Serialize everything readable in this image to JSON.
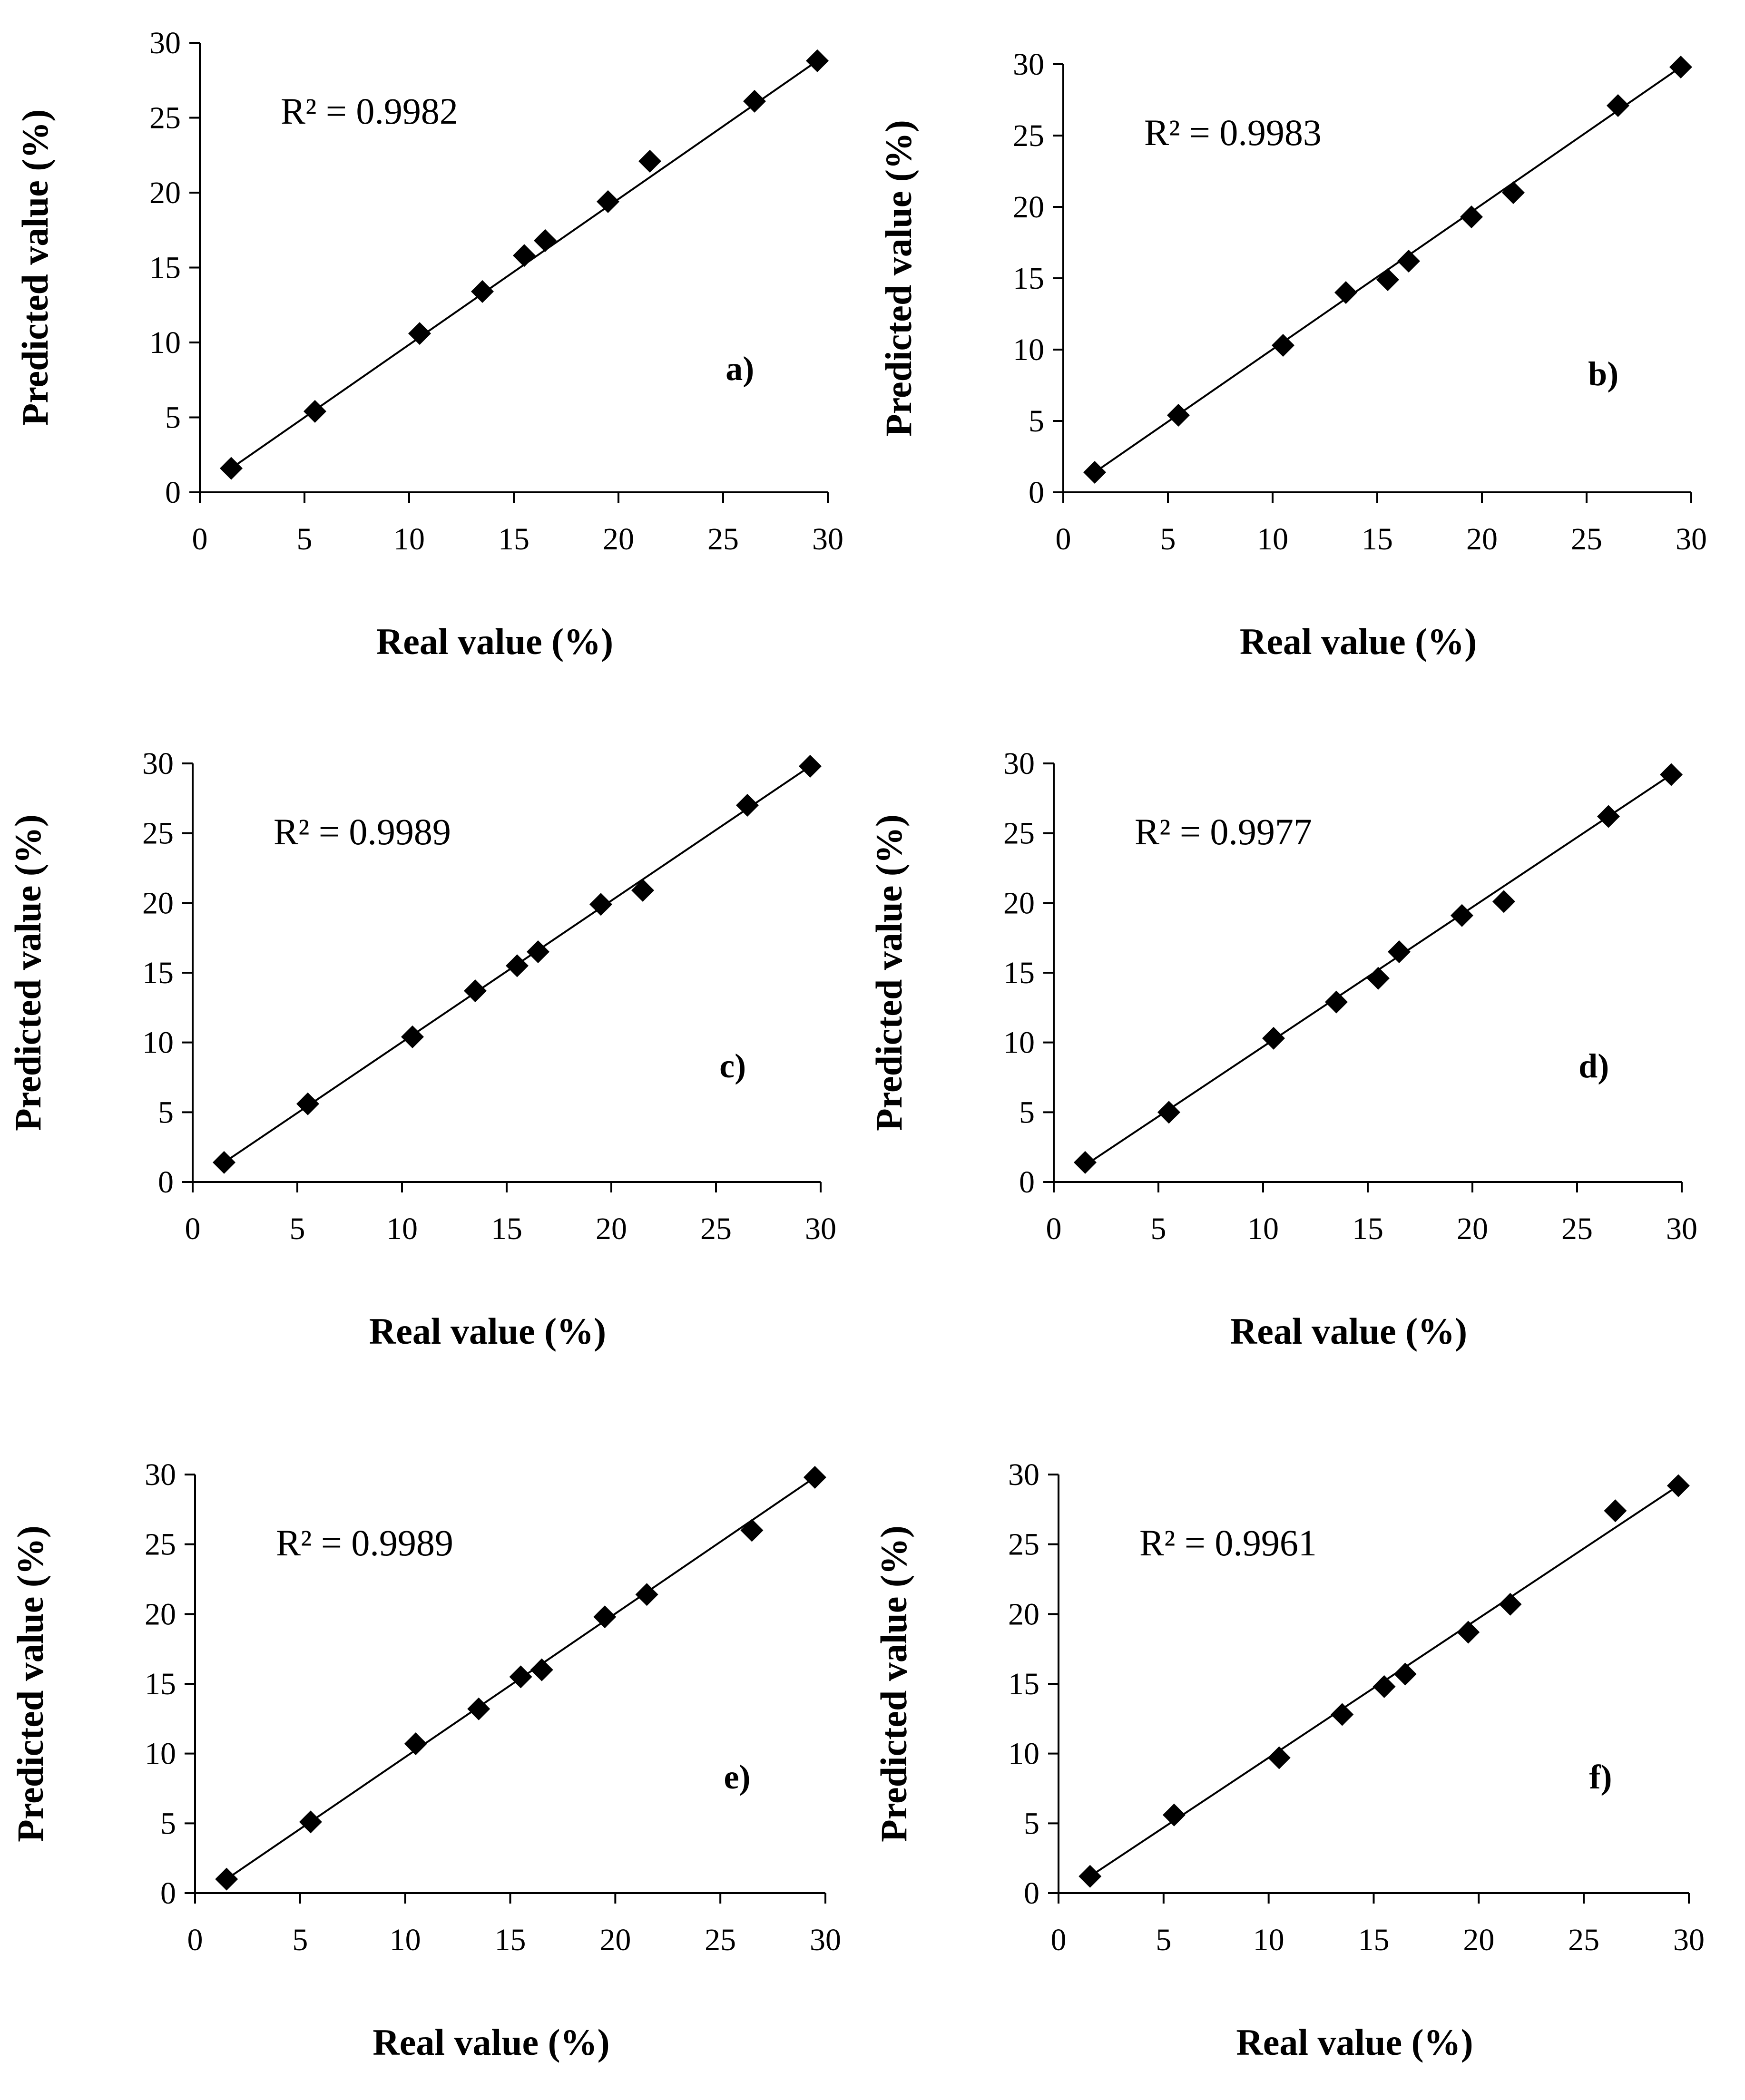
{
  "chart_data": [
    {
      "type": "scatter",
      "panel_label": "a)",
      "annotation": "R² = 0.9982",
      "xlabel": "Real value (%)",
      "ylabel": "Predicted value (%)",
      "xlim": [
        0,
        30
      ],
      "ylim": [
        0,
        30
      ],
      "xticks": [
        "0",
        "5",
        "10",
        "15",
        "20",
        "25",
        "30"
      ],
      "yticks": [
        "0",
        "5",
        "10",
        "15",
        "20",
        "25",
        "30"
      ],
      "trendline": {
        "x": [
          1.5,
          29.5
        ],
        "y": [
          1.6,
          28.8
        ]
      },
      "x": [
        1.5,
        5.5,
        10.5,
        13.5,
        15.5,
        16.5,
        19.5,
        21.5,
        26.5,
        29.5
      ],
      "y": [
        1.6,
        5.4,
        10.6,
        13.4,
        15.8,
        16.8,
        19.4,
        22.1,
        26.1,
        28.8
      ]
    },
    {
      "type": "scatter",
      "panel_label": "b)",
      "annotation": "R² = 0.9983",
      "xlabel": "Real value (%)",
      "ylabel": "Predicted value (%)",
      "xlim": [
        0,
        30
      ],
      "ylim": [
        0,
        30
      ],
      "xticks": [
        "0",
        "5",
        "10",
        "15",
        "20",
        "25",
        "30"
      ],
      "yticks": [
        "0",
        "5",
        "10",
        "15",
        "20",
        "25",
        "30"
      ],
      "trendline": {
        "x": [
          1.5,
          29.5
        ],
        "y": [
          1.4,
          29.8
        ]
      },
      "x": [
        1.5,
        5.5,
        10.5,
        13.5,
        15.5,
        16.5,
        19.5,
        21.5,
        26.5,
        29.5
      ],
      "y": [
        1.4,
        5.4,
        10.3,
        14.0,
        14.9,
        16.2,
        19.3,
        21.0,
        27.1,
        29.8
      ]
    },
    {
      "type": "scatter",
      "panel_label": "c)",
      "annotation": "R² = 0.9989",
      "xlabel": "Real value (%)",
      "ylabel": "Predicted value (%)",
      "xlim": [
        0,
        30
      ],
      "ylim": [
        0,
        30
      ],
      "xticks": [
        "0",
        "5",
        "10",
        "15",
        "20",
        "25",
        "30"
      ],
      "yticks": [
        "0",
        "5",
        "10",
        "15",
        "20",
        "25",
        "30"
      ],
      "trendline": {
        "x": [
          1.5,
          29.5
        ],
        "y": [
          1.4,
          29.8
        ]
      },
      "x": [
        1.5,
        5.5,
        10.5,
        13.5,
        15.5,
        16.5,
        19.5,
        21.5,
        26.5,
        29.5
      ],
      "y": [
        1.4,
        5.6,
        10.4,
        13.7,
        15.5,
        16.5,
        19.9,
        20.9,
        27.0,
        29.8
      ]
    },
    {
      "type": "scatter",
      "panel_label": "d)",
      "annotation": "R² = 0.9977",
      "xlabel": "Real value (%)",
      "ylabel": "Predicted value (%)",
      "xlim": [
        0,
        30
      ],
      "ylim": [
        0,
        30
      ],
      "xticks": [
        "0",
        "5",
        "10",
        "15",
        "20",
        "25",
        "30"
      ],
      "yticks": [
        "0",
        "5",
        "10",
        "15",
        "20",
        "25",
        "30"
      ],
      "trendline": {
        "x": [
          1.5,
          29.5
        ],
        "y": [
          1.2,
          29.2
        ]
      },
      "x": [
        1.5,
        5.5,
        10.5,
        13.5,
        15.5,
        16.5,
        19.5,
        21.5,
        26.5,
        29.5
      ],
      "y": [
        1.4,
        5.0,
        10.3,
        12.9,
        14.6,
        16.5,
        19.1,
        20.1,
        26.2,
        29.2
      ]
    },
    {
      "type": "scatter",
      "panel_label": "e)",
      "annotation": "R² = 0.9989",
      "xlabel": "Real value (%)",
      "ylabel": "Predicted value (%)",
      "xlim": [
        0,
        30
      ],
      "ylim": [
        0,
        30
      ],
      "xticks": [
        "0",
        "5",
        "10",
        "15",
        "20",
        "25",
        "30"
      ],
      "yticks": [
        "0",
        "5",
        "10",
        "15",
        "20",
        "25",
        "30"
      ],
      "trendline": {
        "x": [
          1.5,
          29.5
        ],
        "y": [
          1.0,
          29.8
        ]
      },
      "x": [
        1.5,
        5.5,
        10.5,
        13.5,
        15.5,
        16.5,
        19.5,
        21.5,
        26.5,
        29.5
      ],
      "y": [
        1.0,
        5.1,
        10.7,
        13.2,
        15.5,
        16.0,
        19.8,
        21.4,
        26.0,
        29.8
      ]
    },
    {
      "type": "scatter",
      "panel_label": "f)",
      "annotation": "R² = 0.9961",
      "xlabel": "Real value (%)",
      "ylabel": "Predicted value (%)",
      "xlim": [
        0,
        30
      ],
      "ylim": [
        0,
        30
      ],
      "xticks": [
        "0",
        "5",
        "10",
        "15",
        "20",
        "25",
        "30"
      ],
      "yticks": [
        "0",
        "5",
        "10",
        "15",
        "20",
        "25",
        "30"
      ],
      "trendline": {
        "x": [
          1.5,
          29.5
        ],
        "y": [
          1.2,
          29.2
        ]
      },
      "x": [
        1.5,
        5.5,
        10.5,
        13.5,
        15.5,
        16.5,
        19.5,
        21.5,
        26.5,
        29.5
      ],
      "y": [
        1.2,
        5.6,
        9.7,
        12.8,
        14.8,
        15.7,
        18.7,
        20.7,
        27.4,
        29.2
      ]
    }
  ]
}
